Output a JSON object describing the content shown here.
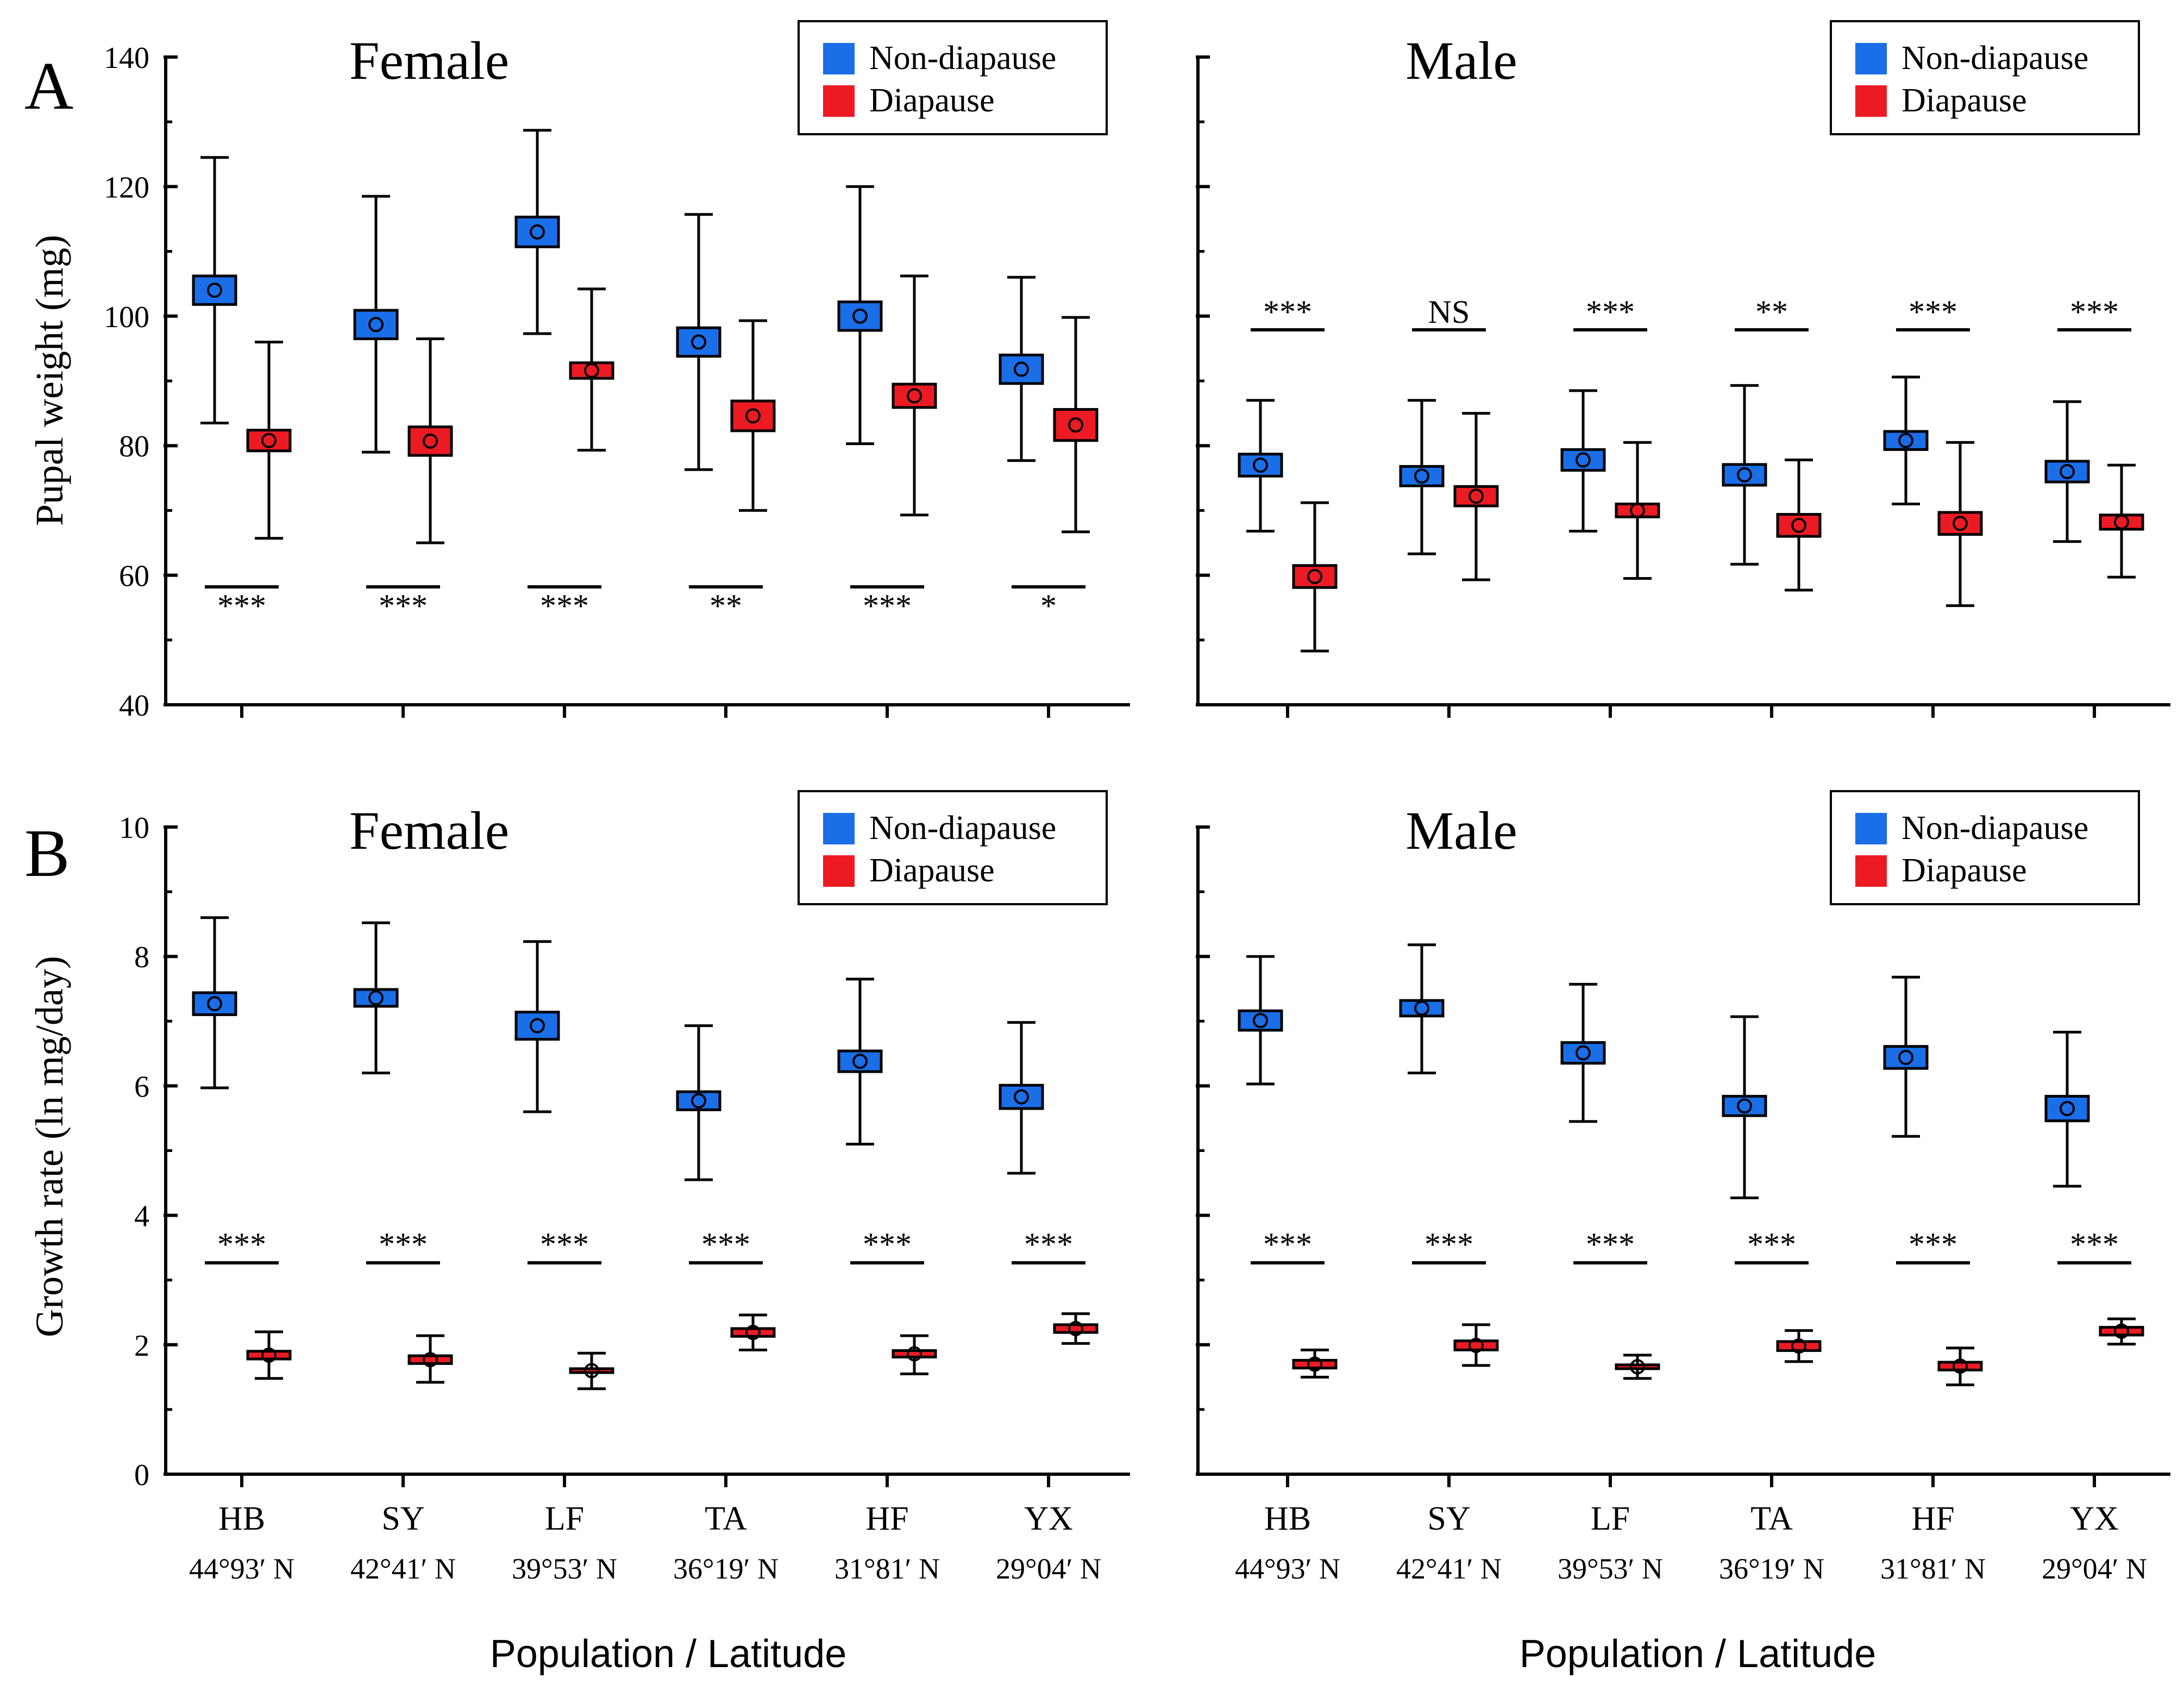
{
  "colors": {
    "non_diapause": "#1a6ee8",
    "diapause": "#ec1b23",
    "axis": "#000000"
  },
  "panel_labels": {
    "A": "A",
    "B": "B"
  },
  "x_axis_title": "Population / Latitude",
  "legend": {
    "non_diapause": "Non-diapause",
    "diapause": "Diapause"
  },
  "chart_data": [
    {
      "type": "box",
      "id": "A-female",
      "title": "Female",
      "ylabel": "Pupal weight (mg)",
      "ylim": [
        40,
        140
      ],
      "yticks": [
        40,
        60,
        80,
        100,
        120,
        140
      ],
      "categories": [
        "HB",
        "SY",
        "LF",
        "TA",
        "HF",
        "YX"
      ],
      "latitudes": [
        "44°93′ N",
        "42°41′ N",
        "39°53′ N",
        "36°19′ N",
        "31°81′ N",
        "29°04′ N"
      ],
      "significance_position": "below",
      "significance": [
        "***",
        "***",
        "***",
        "**",
        "***",
        "*"
      ],
      "series": [
        {
          "name": "Non-diapause",
          "mean": [
            104,
            98.7,
            113,
            96,
            100,
            91.8
          ],
          "box_low": [
            101.8,
            96.5,
            110.7,
            93.8,
            97.8,
            89.6
          ],
          "box_high": [
            106.2,
            100.9,
            115.3,
            98.2,
            102.2,
            94
          ],
          "whisker_low": [
            83.5,
            79,
            97.3,
            76.3,
            80.3,
            77.7
          ],
          "whisker_high": [
            124.5,
            118.5,
            128.7,
            115.7,
            120,
            106
          ]
        },
        {
          "name": "Diapause",
          "mean": [
            80.8,
            80.7,
            91.6,
            84.6,
            87.7,
            83.2
          ],
          "box_low": [
            79.2,
            78.5,
            90.4,
            82.3,
            85.9,
            80.8
          ],
          "box_high": [
            82.4,
            82.9,
            92.8,
            86.9,
            89.5,
            85.6
          ],
          "whisker_low": [
            65.7,
            65,
            79.3,
            70,
            69.3,
            66.7
          ],
          "whisker_high": [
            96,
            96.5,
            104.2,
            99.3,
            106.2,
            99.8
          ]
        }
      ]
    },
    {
      "type": "box",
      "id": "A-male",
      "title": "Male",
      "ylabel": "",
      "ylim": [
        40,
        140
      ],
      "yticks": [
        40,
        60,
        80,
        100,
        120,
        140
      ],
      "categories": [
        "HB",
        "SY",
        "LF",
        "TA",
        "HF",
        "YX"
      ],
      "latitudes": [
        "44°93′ N",
        "42°41′ N",
        "39°53′ N",
        "36°19′ N",
        "31°81′ N",
        "29°04′ N"
      ],
      "significance_position": "above",
      "significance": [
        "***",
        "NS",
        "***",
        "**",
        "***",
        "***"
      ],
      "series": [
        {
          "name": "Non-diapause",
          "mean": [
            77,
            75.3,
            77.8,
            75.5,
            80.8,
            76
          ],
          "box_low": [
            75.3,
            73.8,
            76.2,
            73.9,
            79.4,
            74.4
          ],
          "box_high": [
            78.7,
            76.8,
            79.4,
            77.1,
            82.2,
            77.6
          ],
          "whisker_low": [
            66.8,
            63.3,
            66.8,
            61.7,
            71,
            65.2
          ],
          "whisker_high": [
            87,
            87,
            88.5,
            89.3,
            90.6,
            86.8
          ]
        },
        {
          "name": "Diapause",
          "mean": [
            59.8,
            72.2,
            70,
            67.7,
            68,
            68.2
          ],
          "box_low": [
            58.1,
            70.7,
            69,
            66,
            66.3,
            67.1
          ],
          "box_high": [
            61.5,
            73.7,
            71,
            69.4,
            69.7,
            69.3
          ],
          "whisker_low": [
            48.3,
            59.3,
            59.5,
            57.7,
            55.3,
            59.7
          ],
          "whisker_high": [
            71.2,
            85,
            80.5,
            77.8,
            80.5,
            77
          ]
        }
      ]
    },
    {
      "type": "box",
      "id": "B-female",
      "title": "Female",
      "ylabel": "Growth rate (ln mg/day)",
      "ylim": [
        0,
        10
      ],
      "yticks": [
        0,
        2,
        4,
        6,
        8,
        10
      ],
      "categories": [
        "HB",
        "SY",
        "LF",
        "TA",
        "HF",
        "YX"
      ],
      "latitudes": [
        "44°93′ N",
        "42°41′ N",
        "39°53′ N",
        "36°19′ N",
        "31°81′ N",
        "29°04′ N"
      ],
      "significance_position": "middle",
      "significance": [
        "***",
        "***",
        "***",
        "***",
        "***",
        "***"
      ],
      "series": [
        {
          "name": "Non-diapause",
          "mean": [
            7.27,
            7.36,
            6.93,
            5.77,
            6.38,
            5.83
          ],
          "box_low": [
            7.1,
            7.23,
            6.72,
            5.63,
            6.22,
            5.65
          ],
          "box_high": [
            7.44,
            7.49,
            7.14,
            5.91,
            6.54,
            6.01
          ],
          "whisker_low": [
            5.97,
            6.2,
            5.6,
            4.55,
            5.1,
            4.65
          ],
          "whisker_high": [
            8.6,
            8.52,
            8.23,
            6.93,
            7.65,
            6.98
          ]
        },
        {
          "name": "Diapause",
          "mean": [
            1.84,
            1.77,
            1.6,
            2.19,
            1.86,
            2.25
          ],
          "box_low": [
            1.78,
            1.71,
            1.57,
            2.13,
            1.81,
            2.19
          ],
          "box_high": [
            1.9,
            1.83,
            1.63,
            2.25,
            1.91,
            2.31
          ],
          "whisker_low": [
            1.48,
            1.42,
            1.32,
            1.92,
            1.55,
            2.02
          ],
          "whisker_high": [
            2.2,
            2.14,
            1.87,
            2.46,
            2.14,
            2.48
          ]
        }
      ]
    },
    {
      "type": "box",
      "id": "B-male",
      "title": "Male",
      "ylabel": "",
      "ylim": [
        0,
        10
      ],
      "yticks": [
        0,
        2,
        4,
        6,
        8,
        10
      ],
      "categories": [
        "HB",
        "SY",
        "LF",
        "TA",
        "HF",
        "YX"
      ],
      "latitudes": [
        "44°93′ N",
        "42°41′ N",
        "39°53′ N",
        "36°19′ N",
        "31°81′ N",
        "29°04′ N"
      ],
      "significance_position": "middle",
      "significance": [
        "***",
        "***",
        "***",
        "***",
        "***",
        "***"
      ],
      "series": [
        {
          "name": "Non-diapause",
          "mean": [
            7.01,
            7.2,
            6.51,
            5.69,
            6.44,
            5.65
          ],
          "box_low": [
            6.86,
            7.08,
            6.35,
            5.54,
            6.27,
            5.46
          ],
          "box_high": [
            7.16,
            7.32,
            6.67,
            5.84,
            6.61,
            5.84
          ],
          "whisker_low": [
            6.03,
            6.2,
            5.45,
            4.27,
            5.22,
            4.45
          ],
          "whisker_high": [
            8.0,
            8.18,
            7.57,
            7.07,
            7.68,
            6.83
          ]
        },
        {
          "name": "Diapause",
          "mean": [
            1.7,
            1.99,
            1.66,
            1.98,
            1.67,
            2.21
          ],
          "box_low": [
            1.64,
            1.92,
            1.63,
            1.91,
            1.61,
            2.15
          ],
          "box_high": [
            1.76,
            2.06,
            1.69,
            2.05,
            1.73,
            2.27
          ],
          "whisker_low": [
            1.5,
            1.68,
            1.48,
            1.74,
            1.38,
            2.01
          ],
          "whisker_high": [
            1.92,
            2.31,
            1.84,
            2.22,
            1.95,
            2.4
          ]
        }
      ]
    }
  ]
}
